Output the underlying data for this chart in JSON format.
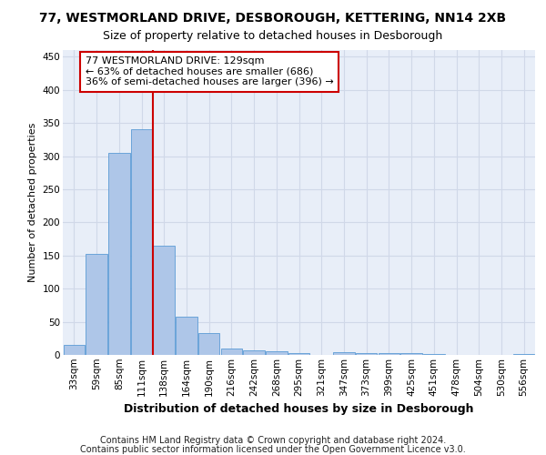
{
  "title_line1": "77, WESTMORLAND DRIVE, DESBOROUGH, KETTERING, NN14 2XB",
  "title_line2": "Size of property relative to detached houses in Desborough",
  "xlabel": "Distribution of detached houses by size in Desborough",
  "ylabel": "Number of detached properties",
  "footer_line1": "Contains HM Land Registry data © Crown copyright and database right 2024.",
  "footer_line2": "Contains public sector information licensed under the Open Government Licence v3.0.",
  "categories": [
    "33sqm",
    "59sqm",
    "85sqm",
    "111sqm",
    "138sqm",
    "164sqm",
    "190sqm",
    "216sqm",
    "242sqm",
    "268sqm",
    "295sqm",
    "321sqm",
    "347sqm",
    "373sqm",
    "399sqm",
    "425sqm",
    "451sqm",
    "478sqm",
    "504sqm",
    "530sqm",
    "556sqm"
  ],
  "values": [
    15,
    153,
    305,
    340,
    165,
    57,
    33,
    10,
    7,
    5,
    3,
    0,
    4,
    3,
    3,
    3,
    2,
    0,
    0,
    0,
    2
  ],
  "bar_color": "#aec6e8",
  "bar_edge_color": "#5b9bd5",
  "grid_color": "#d0d8e8",
  "background_color": "#e8eef8",
  "property_line_x": 3.5,
  "property_line_color": "#cc0000",
  "annotation_text_line1": "77 WESTMORLAND DRIVE: 129sqm",
  "annotation_text_line2": "← 63% of detached houses are smaller (686)",
  "annotation_text_line3": "36% of semi-detached houses are larger (396) →",
  "annotation_box_color": "#ffffff",
  "annotation_box_edge_color": "#cc0000",
  "ylim": [
    0,
    460
  ],
  "yticks": [
    0,
    50,
    100,
    150,
    200,
    250,
    300,
    350,
    400,
    450
  ],
  "title1_fontsize": 10,
  "title2_fontsize": 9,
  "ylabel_fontsize": 8,
  "xlabel_fontsize": 9,
  "tick_fontsize": 7.5,
  "annotation_fontsize": 8,
  "footer_fontsize": 7
}
